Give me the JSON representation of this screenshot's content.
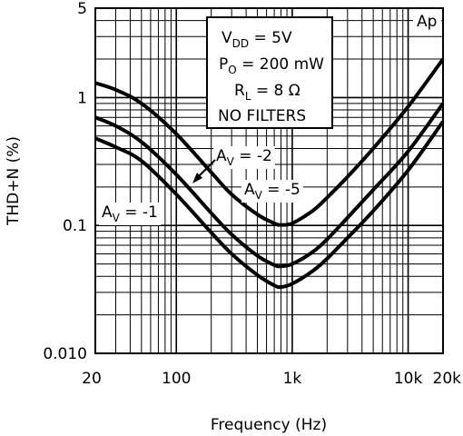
{
  "chart_data": {
    "type": "line",
    "xlabel": "Frequency (Hz)",
    "ylabel": "THD+N (%)",
    "x_scale": "log",
    "y_scale": "log",
    "xlim": [
      20,
      20000
    ],
    "ylim": [
      0.01,
      5
    ],
    "grid": true,
    "x_ticks": [
      {
        "value": 20,
        "label": "20"
      },
      {
        "value": 100,
        "label": "100"
      },
      {
        "value": 1000,
        "label": "1k"
      },
      {
        "value": 10000,
        "label": "10k"
      },
      {
        "value": 20000,
        "label": "20k"
      }
    ],
    "y_ticks": [
      {
        "value": 0.01,
        "label": "0.010"
      },
      {
        "value": 0.1,
        "label": "0.1"
      },
      {
        "value": 1,
        "label": "1"
      },
      {
        "value": 5,
        "label": "5"
      }
    ],
    "corner_label": "Ap",
    "conditions": [
      {
        "main": "V",
        "sub": "DD",
        "rest": " = 5V"
      },
      {
        "main": "P",
        "sub": "O",
        "rest": " = 200 mW"
      },
      {
        "main": "R",
        "sub": "L",
        "rest": " = 8 Ω"
      },
      {
        "main": "NO FILTERS",
        "sub": "",
        "rest": ""
      }
    ],
    "series": [
      {
        "label": {
          "main": "A",
          "sub": "V",
          "rest": " = -1"
        },
        "x": [
          20,
          30,
          50,
          100,
          200,
          300,
          500,
          700,
          800,
          1000,
          1500,
          2000,
          3000,
          5000,
          10000,
          20000
        ],
        "y": [
          1.3,
          1.15,
          0.9,
          0.52,
          0.26,
          0.175,
          0.122,
          0.104,
          0.101,
          0.104,
          0.13,
          0.165,
          0.24,
          0.4,
          0.85,
          2.0
        ]
      },
      {
        "label": {
          "main": "A",
          "sub": "V",
          "rest": " = -2"
        },
        "x": [
          20,
          30,
          50,
          100,
          200,
          300,
          500,
          700,
          800,
          1000,
          1500,
          2000,
          3000,
          5000,
          10000,
          20000
        ],
        "y": [
          0.7,
          0.6,
          0.45,
          0.25,
          0.125,
          0.085,
          0.058,
          0.049,
          0.048,
          0.05,
          0.062,
          0.078,
          0.115,
          0.19,
          0.38,
          0.9
        ]
      },
      {
        "label": {
          "main": "A",
          "sub": "V",
          "rest": " = -5"
        },
        "x": [
          20,
          30,
          50,
          100,
          200,
          300,
          500,
          700,
          800,
          1000,
          1500,
          2000,
          3000,
          5000,
          10000,
          20000
        ],
        "y": [
          0.48,
          0.41,
          0.32,
          0.175,
          0.088,
          0.06,
          0.041,
          0.034,
          0.033,
          0.035,
          0.044,
          0.055,
          0.08,
          0.13,
          0.27,
          0.65
        ]
      }
    ]
  }
}
